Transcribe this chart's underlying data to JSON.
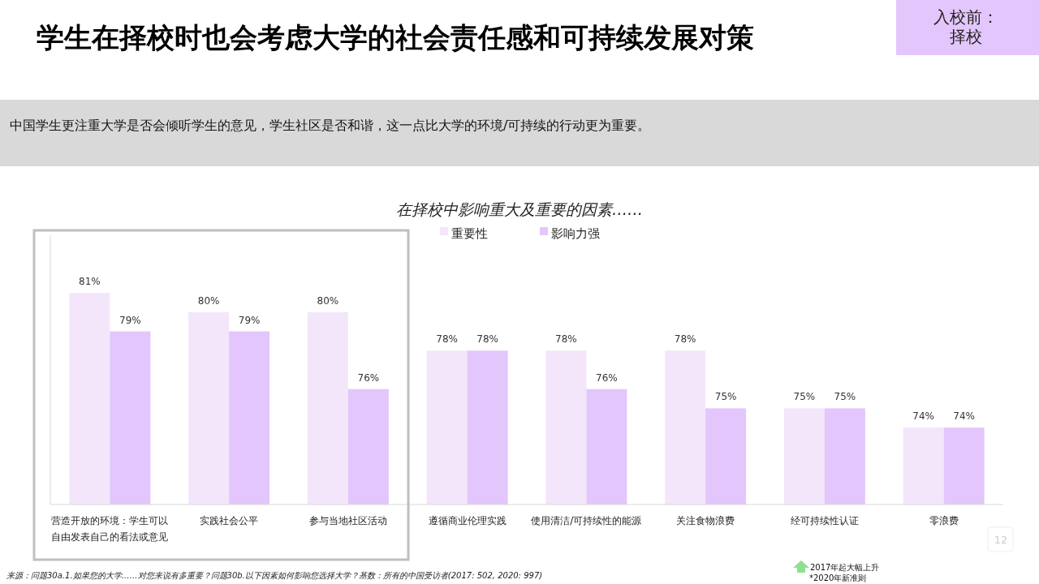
{
  "chart_data": {
    "type": "bar",
    "title": "学生在择校时也会考虑大学的社会责任感和可持续发展对策",
    "subtitle": "中国学生更注重大学是否会倾听学生的意见，学生社区是否和谐，这一点比大学的环境/可持续的行动更为重要。",
    "annotations": [
      "在择校中影响重大及重要的因素……",
      "入校前：择校",
      "来源：问题30a.1.如果您的大学……对您来说有多重要？问题30b.以下因素如何影响您选择大学？基数：所有的中国受访者(2017: 502, 2020: 997)",
      "2017年起大幅上升",
      "*2020年新准则",
      "12"
    ],
    "categories": [
      "营造开放的环境：学生可以自由发表自己的看法或意见",
      "实践社会公平",
      "参与当地社区活动",
      "遵循商业伦理实践",
      "使用清洁/可持续性的能源",
      "关注食物浪费",
      "经可持续性认证",
      "零浪费"
    ],
    "series": [
      {
        "name": "重要性",
        "color": "#f3e6fb",
        "values": [
          81,
          80,
          80,
          78,
          78,
          78,
          75,
          74
        ],
        "value_labels": [
          "81%",
          "80%",
          "80%",
          "78%",
          "78%",
          "78%",
          "75%",
          "74%"
        ]
      },
      {
        "name": "影响力强",
        "color": "#e3c6fb",
        "values": [
          79,
          79,
          76,
          78,
          76,
          75,
          75,
          74
        ],
        "value_labels": [
          "79%",
          "79%",
          "76%",
          "78%",
          "76%",
          "75%",
          "75%",
          "74%"
        ]
      }
    ],
    "ylim": [
      70,
      84
    ],
    "legend": "top",
    "grid": false
  }
}
